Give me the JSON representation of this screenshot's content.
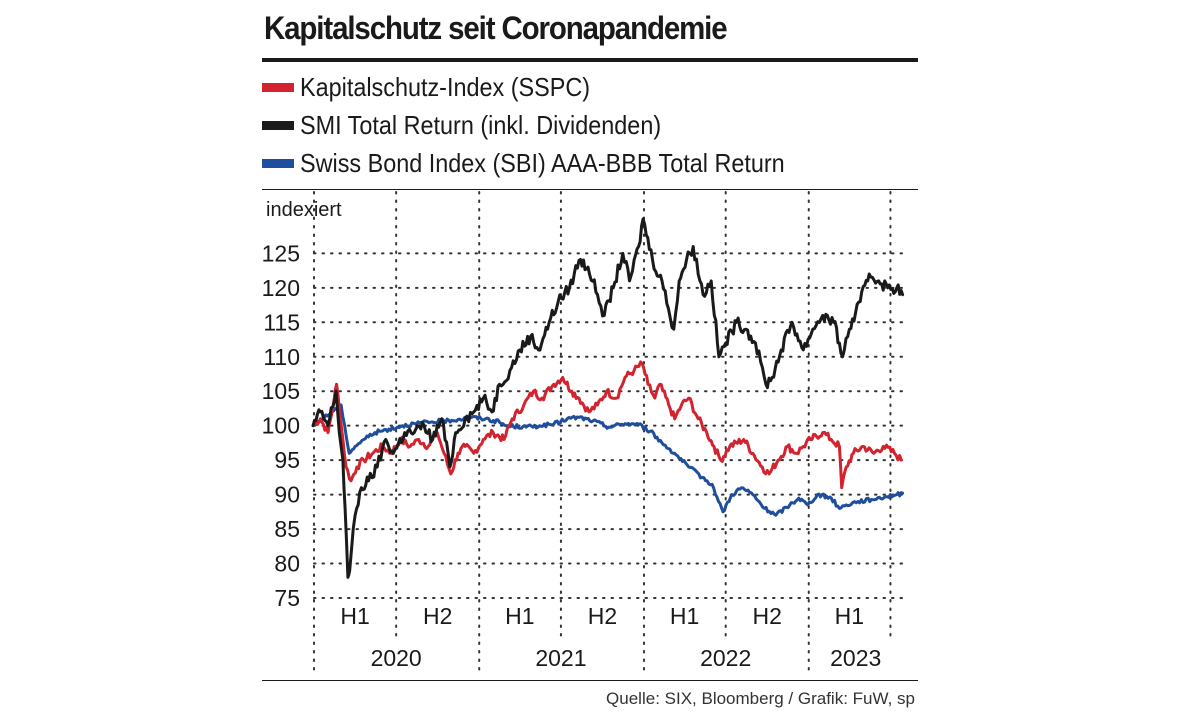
{
  "title": "Kapitalschutz seit Coronapandemie",
  "source": "Quelle: SIX, Bloomberg / Grafik: FuW, sp",
  "colors": {
    "red": "#d2232f",
    "black": "#1a1a1a",
    "blue": "#1f4e9c",
    "grid": "#333333"
  },
  "chart_data": {
    "type": "line",
    "ylabel": "indexiert",
    "ylim": [
      75,
      131
    ],
    "yticks": [
      75,
      80,
      85,
      90,
      95,
      100,
      105,
      110,
      115,
      120,
      125
    ],
    "ytick_labels": [
      "75",
      "80",
      "85",
      "90",
      "95",
      "100",
      "105",
      "110",
      "115",
      "120",
      "125"
    ],
    "xlim": [
      "2020-01-01",
      "2023-07-31"
    ],
    "year_ticks": [
      "2020-01-01",
      "2021-01-01",
      "2022-01-01",
      "2023-01-01"
    ],
    "half_ticks": [
      "2020-07-01",
      "2021-07-01",
      "2022-07-01",
      "2023-07-01"
    ],
    "x_labels": [
      {
        "text": "H1",
        "date": "2020-04-01",
        "row": "half"
      },
      {
        "text": "H2",
        "date": "2020-10-01",
        "row": "half"
      },
      {
        "text": "H1",
        "date": "2021-04-01",
        "row": "half"
      },
      {
        "text": "H2",
        "date": "2021-10-01",
        "row": "half"
      },
      {
        "text": "H1",
        "date": "2022-04-01",
        "row": "half"
      },
      {
        "text": "H2",
        "date": "2022-10-01",
        "row": "half"
      },
      {
        "text": "H1",
        "date": "2023-04-01",
        "row": "half"
      },
      {
        "text": "2020",
        "date": "2020-07-01",
        "row": "year"
      },
      {
        "text": "2021",
        "date": "2021-07-01",
        "row": "year"
      },
      {
        "text": "2022",
        "date": "2022-07-01",
        "row": "year"
      },
      {
        "text": "2023",
        "date": "2023-04-15",
        "row": "year"
      }
    ],
    "series": [
      {
        "name": "Kapitalschutz-Index (SSPC)",
        "color": "#d2232f",
        "points": [
          [
            "2019-12-30",
            100
          ],
          [
            "2020-01-15",
            101
          ],
          [
            "2020-02-01",
            99
          ],
          [
            "2020-02-15",
            104
          ],
          [
            "2020-02-20",
            106
          ],
          [
            "2020-03-05",
            98
          ],
          [
            "2020-03-12",
            94
          ],
          [
            "2020-03-23",
            92
          ],
          [
            "2020-04-05",
            94
          ],
          [
            "2020-04-20",
            95
          ],
          [
            "2020-05-10",
            96
          ],
          [
            "2020-06-01",
            97
          ],
          [
            "2020-06-20",
            96
          ],
          [
            "2020-07-10",
            98
          ],
          [
            "2020-08-01",
            97
          ],
          [
            "2020-08-20",
            98
          ],
          [
            "2020-09-10",
            97
          ],
          [
            "2020-09-30",
            99
          ],
          [
            "2020-10-15",
            96
          ],
          [
            "2020-10-30",
            93
          ],
          [
            "2020-11-15",
            96
          ],
          [
            "2020-12-01",
            97
          ],
          [
            "2020-12-20",
            96
          ],
          [
            "2021-01-10",
            98
          ],
          [
            "2021-02-01",
            99
          ],
          [
            "2021-02-25",
            98
          ],
          [
            "2021-03-15",
            101
          ],
          [
            "2021-04-10",
            103
          ],
          [
            "2021-05-01",
            105
          ],
          [
            "2021-05-20",
            104
          ],
          [
            "2021-06-15",
            106
          ],
          [
            "2021-07-05",
            107
          ],
          [
            "2021-07-25",
            105
          ],
          [
            "2021-08-10",
            104
          ],
          [
            "2021-09-01",
            102
          ],
          [
            "2021-09-20",
            103
          ],
          [
            "2021-10-10",
            105
          ],
          [
            "2021-11-01",
            104
          ],
          [
            "2021-11-20",
            107
          ],
          [
            "2021-12-10",
            108
          ],
          [
            "2021-12-28",
            109
          ],
          [
            "2022-01-10",
            106
          ],
          [
            "2022-01-25",
            104
          ],
          [
            "2022-02-05",
            106
          ],
          [
            "2022-02-25",
            103
          ],
          [
            "2022-03-10",
            101
          ],
          [
            "2022-03-25",
            103
          ],
          [
            "2022-04-10",
            104
          ],
          [
            "2022-05-01",
            101
          ],
          [
            "2022-05-20",
            99
          ],
          [
            "2022-06-05",
            97
          ],
          [
            "2022-06-20",
            95
          ],
          [
            "2022-07-10",
            97
          ],
          [
            "2022-08-10",
            98
          ],
          [
            "2022-08-30",
            96
          ],
          [
            "2022-09-20",
            94
          ],
          [
            "2022-10-05",
            93
          ],
          [
            "2022-10-25",
            95
          ],
          [
            "2022-11-15",
            97
          ],
          [
            "2022-12-05",
            96
          ],
          [
            "2022-12-20",
            97
          ],
          [
            "2023-01-05",
            98
          ],
          [
            "2023-02-01",
            99
          ],
          [
            "2023-02-20",
            98
          ],
          [
            "2023-03-10",
            97
          ],
          [
            "2023-03-15",
            91
          ],
          [
            "2023-03-25",
            94
          ],
          [
            "2023-04-10",
            96
          ],
          [
            "2023-05-01",
            97
          ],
          [
            "2023-05-25",
            96
          ],
          [
            "2023-06-15",
            97
          ],
          [
            "2023-07-10",
            96
          ],
          [
            "2023-07-25",
            95
          ]
        ]
      },
      {
        "name": "SMI Total Return (inkl. Dividenden)",
        "color": "#1a1a1a",
        "points": [
          [
            "2019-12-30",
            100
          ],
          [
            "2020-01-15",
            102
          ],
          [
            "2020-02-01",
            100
          ],
          [
            "2020-02-19",
            105
          ],
          [
            "2020-02-26",
            99
          ],
          [
            "2020-03-05",
            95
          ],
          [
            "2020-03-10",
            88
          ],
          [
            "2020-03-16",
            78
          ],
          [
            "2020-03-20",
            79
          ],
          [
            "2020-04-01",
            87
          ],
          [
            "2020-04-15",
            91
          ],
          [
            "2020-05-01",
            92
          ],
          [
            "2020-05-20",
            94
          ],
          [
            "2020-06-08",
            98
          ],
          [
            "2020-06-25",
            96
          ],
          [
            "2020-07-20",
            99
          ],
          [
            "2020-08-10",
            99
          ],
          [
            "2020-09-01",
            100
          ],
          [
            "2020-09-20",
            98
          ],
          [
            "2020-10-10",
            101
          ],
          [
            "2020-10-28",
            94
          ],
          [
            "2020-11-10",
            99
          ],
          [
            "2020-12-01",
            101
          ],
          [
            "2020-12-20",
            102
          ],
          [
            "2021-01-10",
            104
          ],
          [
            "2021-01-29",
            102
          ],
          [
            "2021-02-15",
            106
          ],
          [
            "2021-03-10",
            108
          ],
          [
            "2021-04-01",
            111
          ],
          [
            "2021-04-25",
            113
          ],
          [
            "2021-05-12",
            111
          ],
          [
            "2021-06-05",
            115
          ],
          [
            "2021-06-25",
            118
          ],
          [
            "2021-07-20",
            120
          ],
          [
            "2021-08-10",
            124
          ],
          [
            "2021-08-30",
            123
          ],
          [
            "2021-09-20",
            119
          ],
          [
            "2021-10-05",
            116
          ],
          [
            "2021-10-25",
            120
          ],
          [
            "2021-11-15",
            125
          ],
          [
            "2021-11-30",
            121
          ],
          [
            "2021-12-20",
            126
          ],
          [
            "2021-12-30",
            130
          ],
          [
            "2022-01-20",
            124
          ],
          [
            "2022-02-10",
            121
          ],
          [
            "2022-02-24",
            117
          ],
          [
            "2022-03-08",
            114
          ],
          [
            "2022-03-20",
            121
          ],
          [
            "2022-04-05",
            124
          ],
          [
            "2022-04-20",
            126
          ],
          [
            "2022-05-12",
            119
          ],
          [
            "2022-05-30",
            121
          ],
          [
            "2022-06-16",
            110
          ],
          [
            "2022-07-01",
            112
          ],
          [
            "2022-07-25",
            115
          ],
          [
            "2022-08-15",
            114
          ],
          [
            "2022-09-05",
            112
          ],
          [
            "2022-09-28",
            106
          ],
          [
            "2022-10-12",
            107
          ],
          [
            "2022-11-01",
            111
          ],
          [
            "2022-11-25",
            115
          ],
          [
            "2022-12-20",
            111
          ],
          [
            "2023-01-10",
            114
          ],
          [
            "2023-02-01",
            116
          ],
          [
            "2023-02-25",
            115
          ],
          [
            "2023-03-10",
            112
          ],
          [
            "2023-03-17",
            110
          ],
          [
            "2023-04-01",
            114
          ],
          [
            "2023-04-25",
            118
          ],
          [
            "2023-05-15",
            122
          ],
          [
            "2023-06-05",
            121
          ],
          [
            "2023-06-25",
            120
          ],
          [
            "2023-07-15",
            120
          ],
          [
            "2023-07-28",
            119
          ]
        ]
      },
      {
        "name": "Swiss Bond Index (SBI) AAA-BBB Total Return",
        "color": "#1f4e9c",
        "points": [
          [
            "2019-12-30",
            100
          ],
          [
            "2020-01-20",
            101
          ],
          [
            "2020-02-10",
            102
          ],
          [
            "2020-03-01",
            103
          ],
          [
            "2020-03-09",
            100
          ],
          [
            "2020-03-19",
            96
          ],
          [
            "2020-04-01",
            97
          ],
          [
            "2020-04-20",
            98
          ],
          [
            "2020-05-15",
            99
          ],
          [
            "2020-06-15",
            99.5
          ],
          [
            "2020-07-15",
            100
          ],
          [
            "2020-08-15",
            100.3
          ],
          [
            "2020-09-15",
            100.5
          ],
          [
            "2020-10-15",
            100.7
          ],
          [
            "2020-11-15",
            100.9
          ],
          [
            "2020-12-15",
            101.2
          ],
          [
            "2021-01-15",
            101
          ],
          [
            "2021-02-15",
            100.5
          ],
          [
            "2021-03-01",
            100
          ],
          [
            "2021-04-15",
            99.8
          ],
          [
            "2021-05-15",
            100
          ],
          [
            "2021-06-15",
            100.2
          ],
          [
            "2021-07-15",
            101
          ],
          [
            "2021-08-10",
            101.2
          ],
          [
            "2021-09-10",
            100.7
          ],
          [
            "2021-10-15",
            99.8
          ],
          [
            "2021-11-20",
            100.3
          ],
          [
            "2021-12-20",
            100.2
          ],
          [
            "2022-01-15",
            99.2
          ],
          [
            "2022-02-10",
            97.5
          ],
          [
            "2022-03-10",
            96
          ],
          [
            "2022-04-10",
            94
          ],
          [
            "2022-05-10",
            92.5
          ],
          [
            "2022-06-01",
            91.5
          ],
          [
            "2022-06-15",
            89
          ],
          [
            "2022-06-25",
            87.5
          ],
          [
            "2022-07-15",
            90
          ],
          [
            "2022-08-05",
            91
          ],
          [
            "2022-08-30",
            90
          ],
          [
            "2022-09-25",
            88
          ],
          [
            "2022-10-20",
            87
          ],
          [
            "2022-11-20",
            88.5
          ],
          [
            "2022-12-10",
            89.5
          ],
          [
            "2022-12-30",
            88.5
          ],
          [
            "2023-01-20",
            90
          ],
          [
            "2023-02-20",
            89.5
          ],
          [
            "2023-03-10",
            88
          ],
          [
            "2023-03-25",
            88.5
          ],
          [
            "2023-04-20",
            89
          ],
          [
            "2023-05-20",
            89.3
          ],
          [
            "2023-06-20",
            89.7
          ],
          [
            "2023-07-15",
            90
          ],
          [
            "2023-07-28",
            90.2
          ]
        ]
      }
    ]
  }
}
